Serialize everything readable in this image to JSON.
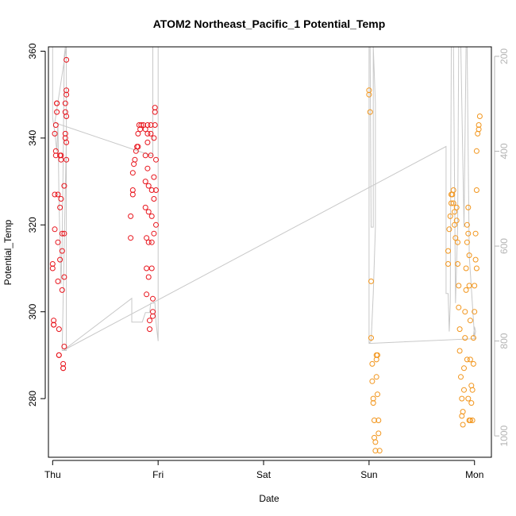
{
  "chart_data": {
    "type": "scatter",
    "title": "ATOM2 Northeast_Pacific_1 Potential_Temp",
    "xlabel": "Date",
    "ylabel": "Potential_Temp",
    "x_ticks": [
      "Thu",
      "Fri",
      "Sat",
      "Sun",
      "Mon"
    ],
    "x_tick_values": [
      0,
      1,
      2,
      3,
      4
    ],
    "xlim": [
      -0.04,
      4.16
    ],
    "ylim": [
      266.5,
      361.0
    ],
    "y_ticks": [
      280,
      300,
      320,
      340,
      360
    ],
    "y2_label": "",
    "y2lim": [
      1045,
      180
    ],
    "y2_ticks": [
      200,
      400,
      600,
      800,
      1000
    ],
    "grid": false,
    "legend": "none",
    "colors": {
      "series_1": "#e8141c",
      "series_2": "#f2951b",
      "line": "#c8c8c8",
      "axis": "#000000",
      "axis2": "#b4b4b4"
    },
    "series": [
      {
        "points": [
          [
            0.0,
            311
          ],
          [
            0.0,
            310
          ],
          [
            0.01,
            298
          ],
          [
            0.01,
            297
          ],
          [
            0.01,
            297
          ],
          [
            0.02,
            327
          ],
          [
            0.02,
            319
          ],
          [
            0.02,
            341
          ],
          [
            0.03,
            343
          ],
          [
            0.03,
            337
          ],
          [
            0.03,
            336
          ],
          [
            0.04,
            348
          ],
          [
            0.04,
            346
          ],
          [
            0.04,
            348
          ],
          [
            0.05,
            327
          ],
          [
            0.05,
            316
          ],
          [
            0.05,
            307
          ],
          [
            0.06,
            296
          ],
          [
            0.06,
            290
          ],
          [
            0.06,
            290
          ],
          [
            0.07,
            312
          ],
          [
            0.07,
            324
          ],
          [
            0.07,
            336
          ],
          [
            0.08,
            335
          ],
          [
            0.08,
            336
          ],
          [
            0.08,
            326
          ],
          [
            0.09,
            318
          ],
          [
            0.09,
            314
          ],
          [
            0.09,
            305
          ],
          [
            0.1,
            287
          ],
          [
            0.1,
            287
          ],
          [
            0.1,
            288
          ],
          [
            0.11,
            292
          ],
          [
            0.11,
            308
          ],
          [
            0.11,
            318
          ],
          [
            0.11,
            329
          ],
          [
            0.12,
            340
          ],
          [
            0.12,
            341
          ],
          [
            0.12,
            346
          ],
          [
            0.12,
            348
          ],
          [
            0.13,
            351
          ],
          [
            0.13,
            350
          ],
          [
            0.13,
            345
          ],
          [
            0.13,
            339
          ],
          [
            0.13,
            335
          ],
          [
            0.13,
            358
          ],
          [
            0.74,
            317
          ],
          [
            0.74,
            322
          ],
          [
            0.76,
            327
          ],
          [
            0.76,
            328
          ],
          [
            0.76,
            332
          ],
          [
            0.77,
            334
          ],
          [
            0.78,
            335
          ],
          [
            0.79,
            337
          ],
          [
            0.8,
            338
          ],
          [
            0.81,
            338
          ],
          [
            0.81,
            341
          ],
          [
            0.82,
            343
          ],
          [
            0.83,
            342
          ],
          [
            0.84,
            343
          ],
          [
            0.86,
            343
          ],
          [
            0.88,
            342
          ],
          [
            0.88,
            336
          ],
          [
            0.88,
            330
          ],
          [
            0.88,
            324
          ],
          [
            0.89,
            317
          ],
          [
            0.89,
            310
          ],
          [
            0.89,
            304
          ],
          [
            0.9,
            343
          ],
          [
            0.9,
            341
          ],
          [
            0.9,
            339
          ],
          [
            0.9,
            333
          ],
          [
            0.91,
            329
          ],
          [
            0.91,
            323
          ],
          [
            0.91,
            316
          ],
          [
            0.91,
            308
          ],
          [
            0.92,
            296
          ],
          [
            0.92,
            298
          ],
          [
            0.93,
            343
          ],
          [
            0.93,
            341
          ],
          [
            0.93,
            336
          ],
          [
            0.94,
            328
          ],
          [
            0.94,
            322
          ],
          [
            0.94,
            316
          ],
          [
            0.94,
            310
          ],
          [
            0.95,
            303
          ],
          [
            0.95,
            300
          ],
          [
            0.95,
            299
          ],
          [
            0.96,
            331
          ],
          [
            0.96,
            326
          ],
          [
            0.96,
            318
          ],
          [
            0.96,
            340
          ],
          [
            0.97,
            347
          ],
          [
            0.97,
            346
          ],
          [
            0.97,
            343
          ],
          [
            0.98,
            335
          ],
          [
            0.98,
            328
          ],
          [
            0.98,
            320
          ]
        ]
      },
      {
        "points": [
          [
            3.0,
            351
          ],
          [
            3.0,
            350
          ],
          [
            3.01,
            346
          ],
          [
            3.02,
            307
          ],
          [
            3.02,
            294
          ],
          [
            3.03,
            288
          ],
          [
            3.03,
            284
          ],
          [
            3.04,
            280
          ],
          [
            3.04,
            279
          ],
          [
            3.05,
            275
          ],
          [
            3.05,
            271
          ],
          [
            3.06,
            270
          ],
          [
            3.06,
            268
          ],
          [
            3.07,
            289
          ],
          [
            3.07,
            290
          ],
          [
            3.07,
            285
          ],
          [
            3.08,
            281
          ],
          [
            3.08,
            290
          ],
          [
            3.09,
            275
          ],
          [
            3.09,
            272
          ],
          [
            3.1,
            268
          ],
          [
            3.75,
            311
          ],
          [
            3.75,
            314
          ],
          [
            3.76,
            319
          ],
          [
            3.77,
            322
          ],
          [
            3.78,
            325
          ],
          [
            3.78,
            327
          ],
          [
            3.79,
            327
          ],
          [
            3.8,
            328
          ],
          [
            3.8,
            325
          ],
          [
            3.81,
            323
          ],
          [
            3.81,
            320
          ],
          [
            3.82,
            317
          ],
          [
            3.83,
            321
          ],
          [
            3.83,
            324
          ],
          [
            3.84,
            316
          ],
          [
            3.84,
            311
          ],
          [
            3.85,
            306
          ],
          [
            3.85,
            301
          ],
          [
            3.86,
            296
          ],
          [
            3.86,
            291
          ],
          [
            3.87,
            285
          ],
          [
            3.88,
            280
          ],
          [
            3.88,
            276
          ],
          [
            3.89,
            274
          ],
          [
            3.89,
            277
          ],
          [
            3.9,
            282
          ],
          [
            3.9,
            287
          ],
          [
            3.91,
            294
          ],
          [
            3.91,
            300
          ],
          [
            3.92,
            305
          ],
          [
            3.92,
            310
          ],
          [
            3.93,
            316
          ],
          [
            3.93,
            320
          ],
          [
            3.94,
            324
          ],
          [
            3.94,
            318
          ],
          [
            3.95,
            313
          ],
          [
            3.95,
            306
          ],
          [
            3.96,
            298
          ],
          [
            3.96,
            289
          ],
          [
            3.97,
            283
          ],
          [
            3.97,
            279
          ],
          [
            3.98,
            275
          ],
          [
            3.98,
            282
          ],
          [
            3.99,
            288
          ],
          [
            3.99,
            294
          ],
          [
            4.0,
            300
          ],
          [
            4.0,
            306
          ],
          [
            4.01,
            312
          ],
          [
            4.01,
            318
          ],
          [
            4.02,
            328
          ],
          [
            4.02,
            337
          ],
          [
            4.03,
            341
          ],
          [
            4.04,
            343
          ],
          [
            4.05,
            345
          ],
          [
            4.04,
            342
          ],
          [
            4.02,
            310
          ],
          [
            3.93,
            289
          ],
          [
            3.94,
            280
          ],
          [
            3.95,
            275
          ],
          [
            3.96,
            275
          ]
        ]
      }
    ],
    "line_y2": [
      [
        0.0,
        180
      ],
      [
        0.0,
        330
      ],
      [
        0.02,
        360
      ],
      [
        0.03,
        380
      ],
      [
        0.04,
        400
      ],
      [
        0.05,
        340
      ],
      [
        0.06,
        500
      ],
      [
        0.07,
        600
      ],
      [
        0.08,
        680
      ],
      [
        0.09,
        590
      ],
      [
        0.1,
        420
      ],
      [
        0.11,
        200
      ],
      [
        0.12,
        180
      ],
      [
        0.13,
        180
      ],
      [
        0.13,
        820
      ],
      [
        0.09,
        820
      ],
      [
        0.13,
        370
      ],
      [
        0.13,
        180
      ],
      [
        0.02,
        340
      ],
      [
        0.95,
        410
      ],
      [
        0.95,
        180
      ],
      [
        0.95,
        180
      ],
      [
        0.95,
        180
      ],
      [
        0.98,
        180
      ],
      [
        1.0,
        180
      ],
      [
        1.0,
        800
      ],
      [
        0.98,
        760
      ],
      [
        0.97,
        720
      ],
      [
        0.93,
        720
      ],
      [
        0.92,
        740
      ],
      [
        0.88,
        740
      ],
      [
        0.85,
        760
      ],
      [
        0.85,
        760
      ],
      [
        0.75,
        760
      ],
      [
        0.75,
        730
      ],
      [
        0.75,
        710
      ],
      [
        0.1,
        820
      ],
      [
        3.73,
        390
      ],
      [
        3.73,
        700
      ],
      [
        3.75,
        700
      ],
      [
        3.76,
        780
      ],
      [
        3.77,
        720
      ],
      [
        3.78,
        180
      ],
      [
        3.8,
        180
      ],
      [
        3.82,
        720
      ],
      [
        3.84,
        560
      ],
      [
        3.85,
        180
      ],
      [
        3.87,
        180
      ],
      [
        3.9,
        560
      ],
      [
        3.92,
        180
      ],
      [
        3.93,
        180
      ],
      [
        3.95,
        620
      ],
      [
        4.0,
        790
      ],
      [
        4.01,
        780
      ],
      [
        4.0,
        770
      ],
      [
        3.99,
        790
      ],
      [
        4.01,
        795
      ],
      [
        3.0,
        805
      ],
      [
        3.0,
        180
      ],
      [
        3.01,
        180
      ],
      [
        3.02,
        560
      ],
      [
        3.04,
        560
      ],
      [
        3.04,
        180
      ],
      [
        3.06,
        300
      ],
      [
        3.06,
        560
      ],
      [
        3.04,
        700
      ],
      [
        3.02,
        800
      ],
      [
        3.0,
        805
      ]
    ]
  }
}
